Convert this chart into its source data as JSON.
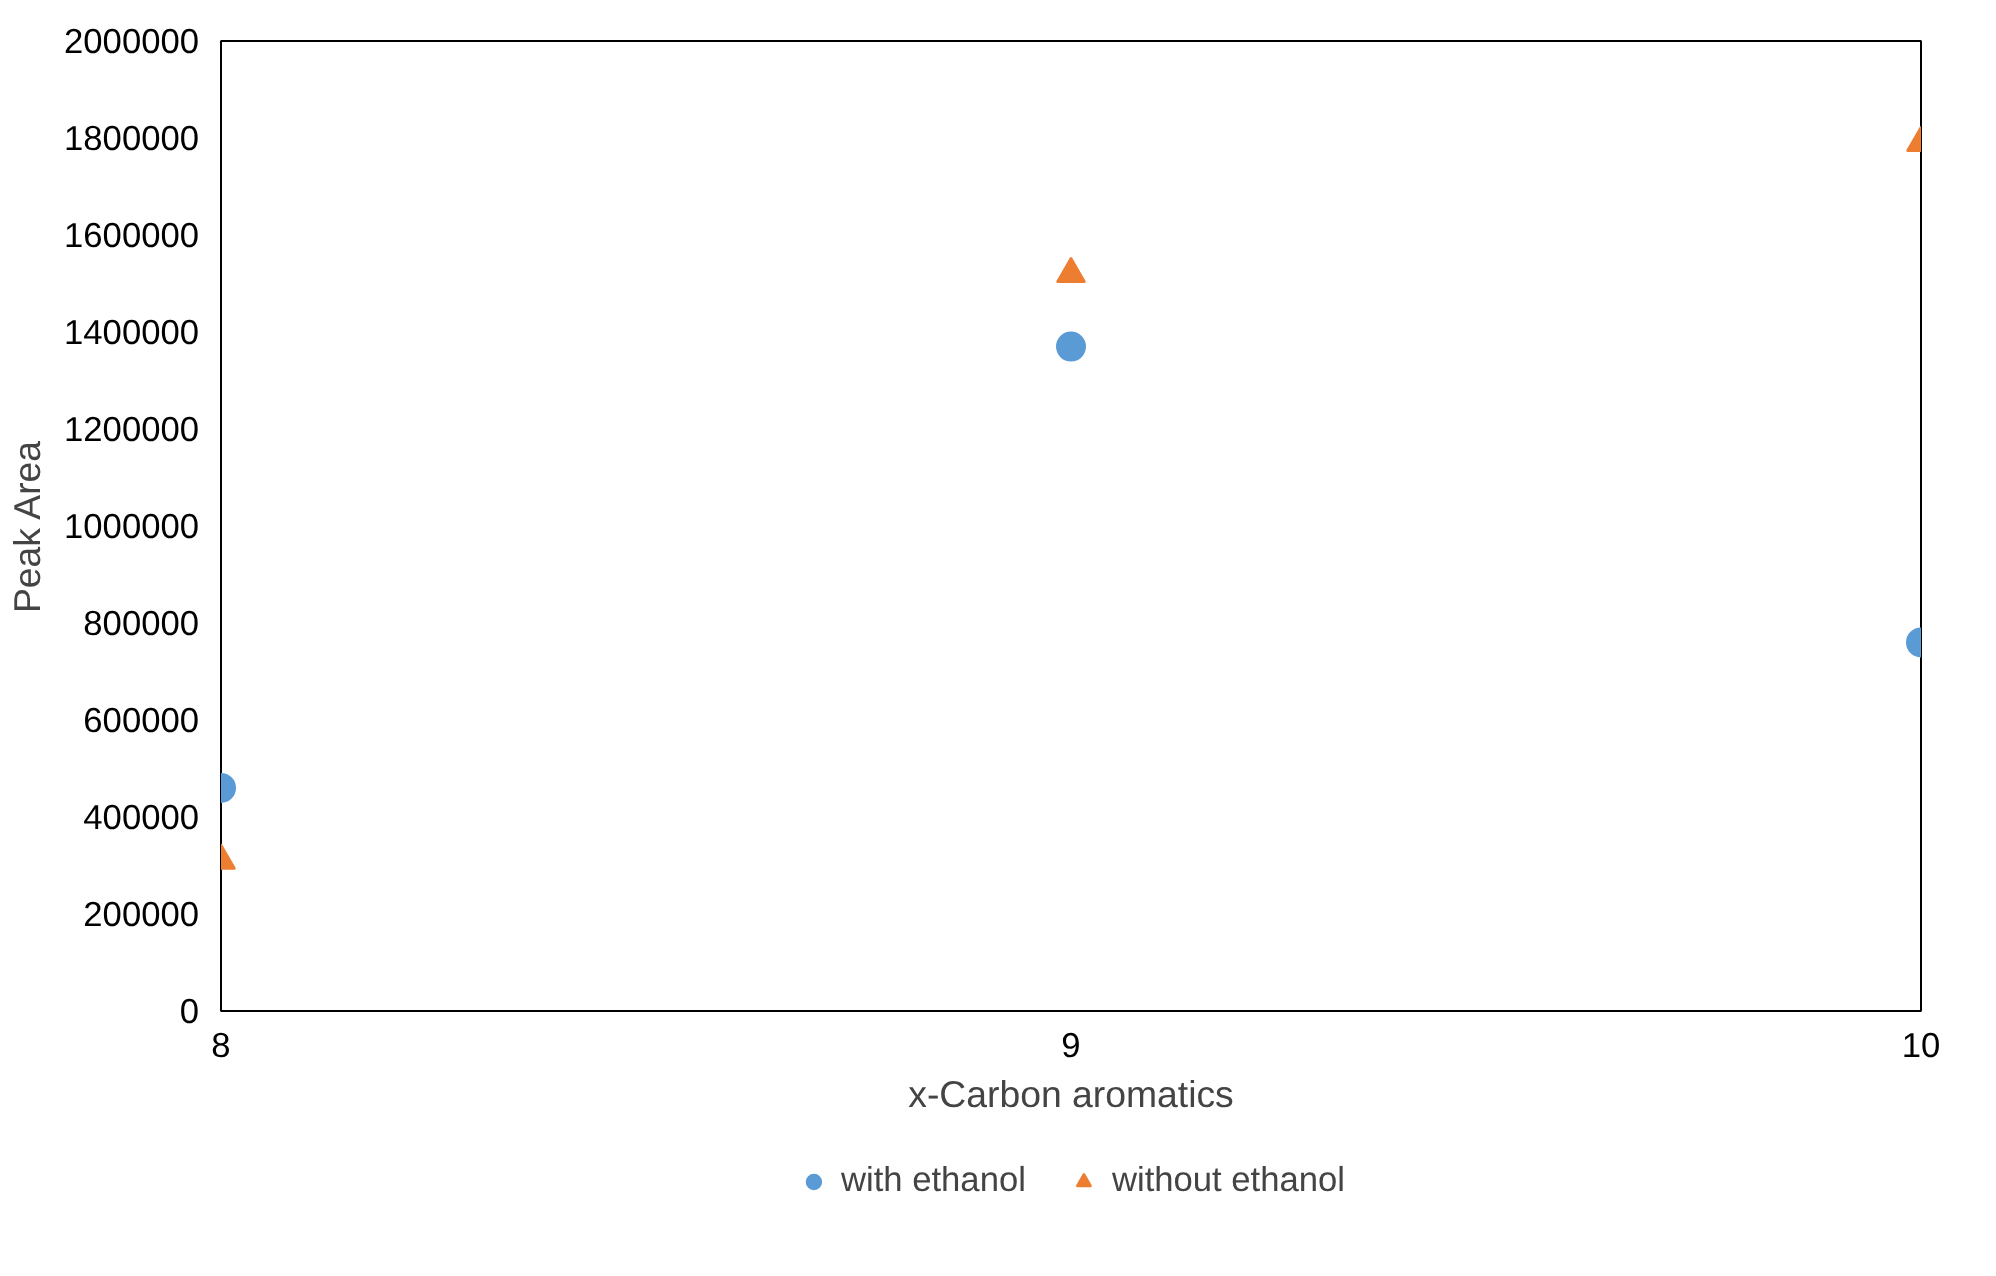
{
  "chart_data": {
    "type": "scatter",
    "xlabel": "x-Carbon aromatics",
    "ylabel": "Peak Area",
    "x": [
      8,
      9,
      10
    ],
    "series": [
      {
        "name": "with ethanol",
        "color": "#5b9bd5",
        "marker": "circle",
        "values": [
          460000,
          1370000,
          760000
        ]
      },
      {
        "name": "without ethanol",
        "color": "#ed7d31",
        "marker": "triangle",
        "values": [
          310000,
          1520000,
          1790000
        ]
      }
    ],
    "xlim": [
      8,
      10
    ],
    "xticks": [
      8,
      9,
      10
    ],
    "ylim": [
      0,
      2000000
    ],
    "yticks": [
      0,
      200000,
      400000,
      600000,
      800000,
      1000000,
      1200000,
      1400000,
      1600000,
      1800000,
      2000000
    ],
    "grid": false,
    "legend": "bottom"
  }
}
